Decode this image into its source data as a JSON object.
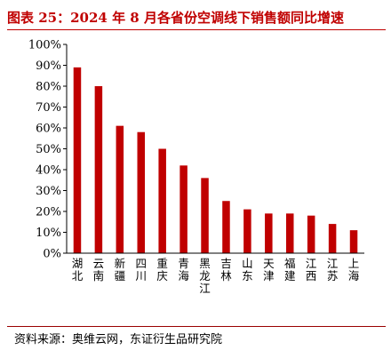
{
  "header": {
    "title": "图表 25：2024 年 8 月各省份空调线下销售额同比增速"
  },
  "footer": {
    "source": "资料来源：奥维云网，东证衍生品研究院"
  },
  "colors": {
    "bar": "#c00000",
    "accent": "#c00000"
  },
  "chart_data": {
    "type": "bar",
    "title": "图表 25：2024 年 8 月各省份空调线下销售额同比增速",
    "xlabel": "",
    "ylabel": "",
    "ylim": [
      0,
      100
    ],
    "yticks": [
      "0%",
      "10%",
      "20%",
      "30%",
      "40%",
      "50%",
      "60%",
      "70%",
      "80%",
      "90%",
      "100%"
    ],
    "grid": false,
    "categories": [
      "湖北",
      "云南",
      "新疆",
      "四川",
      "重庆",
      "青海",
      "黑龙江",
      "吉林",
      "山东",
      "天津",
      "福建",
      "江西",
      "江苏",
      "上海"
    ],
    "values": [
      89,
      80,
      61,
      58,
      50,
      42,
      36,
      25,
      21,
      19,
      19,
      18,
      14,
      11
    ]
  }
}
